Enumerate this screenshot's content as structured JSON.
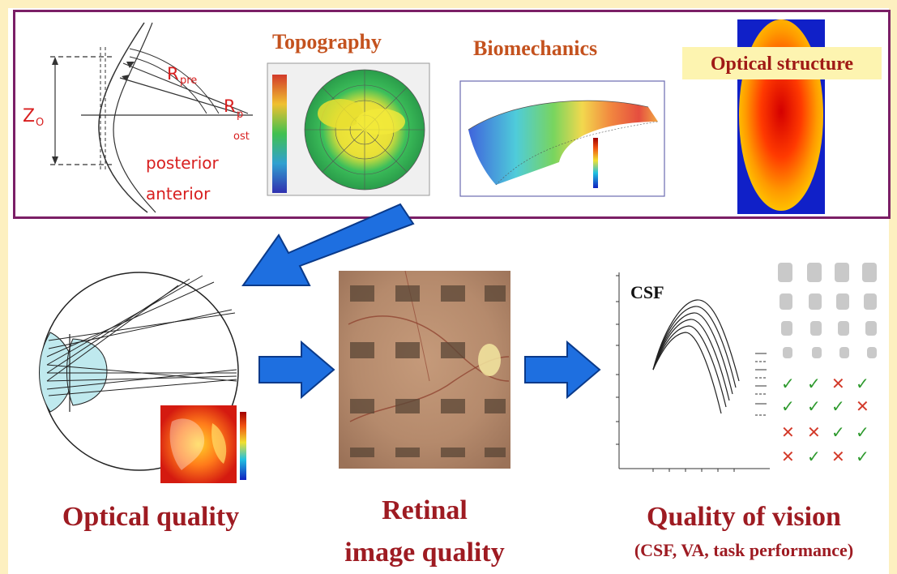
{
  "top_panel": {
    "cornea_diagram": {
      "label_z0": "Z",
      "label_z0_sub": "O",
      "label_rpre": "R",
      "label_rpre_sub": "pre",
      "label_rpost": "R",
      "label_rpost_sub_a": "p",
      "label_rpost_sub_b": "ost",
      "label_posterior": "posterior",
      "label_anterior": "anterior"
    },
    "topography": {
      "title": "Topography"
    },
    "biomechanics": {
      "title": "Biomechanics"
    },
    "optical_structure": {
      "title": "Optical structure"
    }
  },
  "bottom_panel": {
    "optical_quality": {
      "caption": "Optical quality"
    },
    "retinal_image": {
      "caption_line1": "Retinal",
      "caption_line2": "image quality"
    },
    "quality_of_vision": {
      "csf_label": "CSF",
      "caption": "Quality of vision",
      "subcaption": "(CSF, VA, task performance)"
    }
  },
  "colors": {
    "frame": "#7b1f66",
    "arrow": "#1e6fe0",
    "title_orange": "#c4521e",
    "caption_red": "#9e1b22",
    "label_red": "#d81f1f",
    "check_green": "#2e9a2e",
    "cross_red": "#d33a2a"
  }
}
